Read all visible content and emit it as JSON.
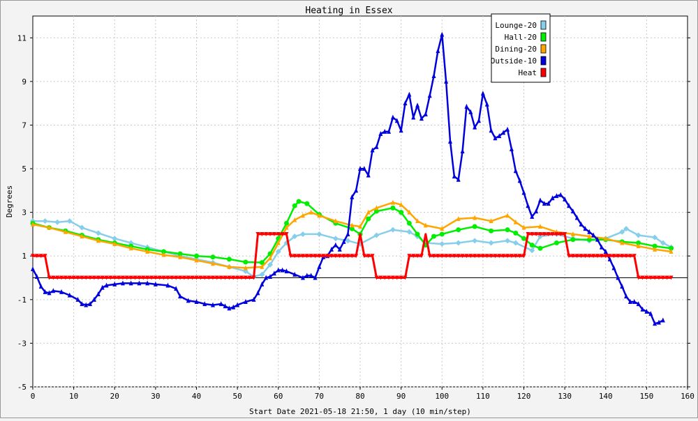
{
  "chart_data": {
    "type": "line",
    "title": "Heating in Essex",
    "xlabel": "Start Date 2021-05-18 21:50, 1 day (10 min/step)",
    "ylabel": "Degrees",
    "xlim": [
      0,
      160
    ],
    "ylim": [
      -5,
      12
    ],
    "x_ticks": [
      0,
      10,
      20,
      30,
      40,
      50,
      60,
      70,
      80,
      90,
      100,
      110,
      120,
      130,
      140,
      150,
      160
    ],
    "y_ticks": [
      -5,
      -3,
      -1,
      1,
      3,
      5,
      7,
      9,
      11
    ],
    "grid": true,
    "legend_position": "top-right",
    "series": [
      {
        "name": "Lounge-20",
        "color": "#87ceeb",
        "marker": "diamond",
        "points": [
          [
            0,
            2.6
          ],
          [
            3,
            2.6
          ],
          [
            6,
            2.55
          ],
          [
            9,
            2.6
          ],
          [
            12,
            2.3
          ],
          [
            16,
            2.05
          ],
          [
            20,
            1.8
          ],
          [
            24,
            1.6
          ],
          [
            28,
            1.4
          ],
          [
            32,
            1.2
          ],
          [
            36,
            1.0
          ],
          [
            40,
            0.85
          ],
          [
            44,
            0.7
          ],
          [
            48,
            0.5
          ],
          [
            52,
            0.3
          ],
          [
            54,
            0.05
          ],
          [
            56,
            0.15
          ],
          [
            58,
            0.6
          ],
          [
            60,
            1.2
          ],
          [
            62,
            1.6
          ],
          [
            64,
            1.9
          ],
          [
            66,
            2.0
          ],
          [
            70,
            2.0
          ],
          [
            74,
            1.8
          ],
          [
            77,
            1.7
          ],
          [
            80,
            1.55
          ],
          [
            84,
            1.95
          ],
          [
            88,
            2.2
          ],
          [
            92,
            2.1
          ],
          [
            94,
            1.9
          ],
          [
            96,
            1.6
          ],
          [
            100,
            1.55
          ],
          [
            104,
            1.6
          ],
          [
            108,
            1.7
          ],
          [
            112,
            1.6
          ],
          [
            116,
            1.7
          ],
          [
            118,
            1.6
          ],
          [
            122,
            1.25
          ],
          [
            124,
            1.9
          ],
          [
            128,
            2.0
          ],
          [
            132,
            1.8
          ],
          [
            136,
            1.7
          ],
          [
            140,
            1.8
          ],
          [
            144,
            2.1
          ],
          [
            145,
            2.25
          ],
          [
            148,
            1.95
          ],
          [
            152,
            1.85
          ],
          [
            154,
            1.6
          ],
          [
            156,
            1.4
          ]
        ]
      },
      {
        "name": "Hall-20",
        "color": "#00ee00",
        "marker": "circle",
        "points": [
          [
            0,
            2.5
          ],
          [
            4,
            2.3
          ],
          [
            8,
            2.15
          ],
          [
            12,
            1.95
          ],
          [
            16,
            1.75
          ],
          [
            20,
            1.6
          ],
          [
            24,
            1.45
          ],
          [
            28,
            1.3
          ],
          [
            32,
            1.2
          ],
          [
            36,
            1.1
          ],
          [
            40,
            1.0
          ],
          [
            44,
            0.95
          ],
          [
            48,
            0.85
          ],
          [
            52,
            0.72
          ],
          [
            56,
            0.7
          ],
          [
            58,
            1.1
          ],
          [
            60,
            1.8
          ],
          [
            62,
            2.5
          ],
          [
            64,
            3.3
          ],
          [
            65,
            3.5
          ],
          [
            67,
            3.4
          ],
          [
            70,
            2.9
          ],
          [
            74,
            2.5
          ],
          [
            78,
            2.25
          ],
          [
            80,
            2.0
          ],
          [
            82,
            2.7
          ],
          [
            84,
            3.05
          ],
          [
            88,
            3.2
          ],
          [
            90,
            3.0
          ],
          [
            92,
            2.5
          ],
          [
            94,
            2.0
          ],
          [
            96,
            1.5
          ],
          [
            98,
            1.9
          ],
          [
            100,
            2.0
          ],
          [
            104,
            2.2
          ],
          [
            108,
            2.35
          ],
          [
            112,
            2.15
          ],
          [
            116,
            2.2
          ],
          [
            118,
            2.05
          ],
          [
            120,
            1.8
          ],
          [
            122,
            1.5
          ],
          [
            124,
            1.35
          ],
          [
            128,
            1.6
          ],
          [
            132,
            1.75
          ],
          [
            136,
            1.75
          ],
          [
            140,
            1.75
          ],
          [
            144,
            1.65
          ],
          [
            148,
            1.6
          ],
          [
            152,
            1.45
          ],
          [
            156,
            1.35
          ]
        ]
      },
      {
        "name": "Dining-20",
        "color": "#ffa500",
        "marker": "triangle",
        "points": [
          [
            0,
            2.45
          ],
          [
            4,
            2.3
          ],
          [
            8,
            2.1
          ],
          [
            12,
            1.9
          ],
          [
            16,
            1.7
          ],
          [
            20,
            1.55
          ],
          [
            24,
            1.35
          ],
          [
            28,
            1.2
          ],
          [
            32,
            1.05
          ],
          [
            36,
            0.95
          ],
          [
            40,
            0.8
          ],
          [
            44,
            0.65
          ],
          [
            48,
            0.5
          ],
          [
            52,
            0.45
          ],
          [
            56,
            0.5
          ],
          [
            58,
            0.9
          ],
          [
            60,
            1.6
          ],
          [
            62,
            2.3
          ],
          [
            64,
            2.65
          ],
          [
            66,
            2.85
          ],
          [
            68,
            3.0
          ],
          [
            70,
            2.85
          ],
          [
            74,
            2.6
          ],
          [
            78,
            2.4
          ],
          [
            80,
            2.35
          ],
          [
            82,
            3.0
          ],
          [
            84,
            3.2
          ],
          [
            88,
            3.45
          ],
          [
            90,
            3.35
          ],
          [
            92,
            3.0
          ],
          [
            94,
            2.6
          ],
          [
            96,
            2.4
          ],
          [
            100,
            2.25
          ],
          [
            104,
            2.7
          ],
          [
            108,
            2.75
          ],
          [
            112,
            2.6
          ],
          [
            116,
            2.85
          ],
          [
            118,
            2.55
          ],
          [
            120,
            2.3
          ],
          [
            124,
            2.35
          ],
          [
            128,
            2.1
          ],
          [
            132,
            2.0
          ],
          [
            136,
            1.9
          ],
          [
            140,
            1.8
          ],
          [
            144,
            1.6
          ],
          [
            148,
            1.45
          ],
          [
            152,
            1.3
          ],
          [
            156,
            1.2
          ]
        ]
      },
      {
        "name": "Outside-10",
        "color": "#0000dd",
        "marker": "triangle",
        "points": [
          [
            0,
            0.4
          ],
          [
            1,
            0.05
          ],
          [
            2,
            -0.4
          ],
          [
            3,
            -0.65
          ],
          [
            4,
            -0.7
          ],
          [
            5,
            -0.6
          ],
          [
            7,
            -0.65
          ],
          [
            9,
            -0.8
          ],
          [
            11,
            -1.0
          ],
          [
            12,
            -1.2
          ],
          [
            13,
            -1.25
          ],
          [
            14,
            -1.2
          ],
          [
            15,
            -1.0
          ],
          [
            16,
            -0.75
          ],
          [
            17,
            -0.45
          ],
          [
            18,
            -0.35
          ],
          [
            20,
            -0.3
          ],
          [
            22,
            -0.25
          ],
          [
            24,
            -0.25
          ],
          [
            26,
            -0.25
          ],
          [
            28,
            -0.25
          ],
          [
            30,
            -0.3
          ],
          [
            33,
            -0.35
          ],
          [
            35,
            -0.5
          ],
          [
            36,
            -0.85
          ],
          [
            38,
            -1.05
          ],
          [
            40,
            -1.1
          ],
          [
            42,
            -1.2
          ],
          [
            44,
            -1.25
          ],
          [
            46,
            -1.2
          ],
          [
            47,
            -1.3
          ],
          [
            48,
            -1.4
          ],
          [
            49,
            -1.35
          ],
          [
            50,
            -1.25
          ],
          [
            52,
            -1.1
          ],
          [
            54,
            -1.0
          ],
          [
            55,
            -0.7
          ],
          [
            56,
            -0.3
          ],
          [
            57,
            0.0
          ],
          [
            58,
            0.05
          ],
          [
            59,
            0.2
          ],
          [
            60,
            0.35
          ],
          [
            61,
            0.35
          ],
          [
            62,
            0.3
          ],
          [
            64,
            0.15
          ],
          [
            66,
            0.0
          ],
          [
            67,
            0.1
          ],
          [
            68,
            0.1
          ],
          [
            69,
            0.0
          ],
          [
            70,
            0.5
          ],
          [
            71,
            0.95
          ],
          [
            72,
            1.0
          ],
          [
            73,
            1.3
          ],
          [
            74,
            1.5
          ],
          [
            75,
            1.3
          ],
          [
            76,
            1.65
          ],
          [
            77,
            2.0
          ],
          [
            78,
            3.7
          ],
          [
            79,
            4.0
          ],
          [
            80,
            5.0
          ],
          [
            81,
            5.0
          ],
          [
            82,
            4.7
          ],
          [
            83,
            5.85
          ],
          [
            84,
            6.0
          ],
          [
            85,
            6.6
          ],
          [
            86,
            6.7
          ],
          [
            87,
            6.7
          ],
          [
            88,
            7.35
          ],
          [
            89,
            7.2
          ],
          [
            90,
            6.75
          ],
          [
            91,
            8.0
          ],
          [
            92,
            8.4
          ],
          [
            93,
            7.35
          ],
          [
            94,
            7.9
          ],
          [
            95,
            7.3
          ],
          [
            96,
            7.5
          ],
          [
            97,
            8.35
          ],
          [
            98,
            9.25
          ],
          [
            99,
            10.4
          ],
          [
            100,
            11.15
          ],
          [
            101,
            9.0
          ],
          [
            102,
            6.25
          ],
          [
            103,
            4.65
          ],
          [
            104,
            4.5
          ],
          [
            105,
            5.8
          ],
          [
            106,
            7.85
          ],
          [
            107,
            7.6
          ],
          [
            108,
            6.9
          ],
          [
            109,
            7.2
          ],
          [
            110,
            8.45
          ],
          [
            111,
            7.95
          ],
          [
            112,
            6.75
          ],
          [
            113,
            6.4
          ],
          [
            114,
            6.5
          ],
          [
            115,
            6.65
          ],
          [
            116,
            6.8
          ],
          [
            117,
            5.9
          ],
          [
            118,
            4.9
          ],
          [
            119,
            4.45
          ],
          [
            120,
            3.9
          ],
          [
            121,
            3.3
          ],
          [
            122,
            2.8
          ],
          [
            123,
            3.05
          ],
          [
            124,
            3.55
          ],
          [
            125,
            3.4
          ],
          [
            126,
            3.4
          ],
          [
            127,
            3.65
          ],
          [
            128,
            3.75
          ],
          [
            129,
            3.8
          ],
          [
            130,
            3.6
          ],
          [
            131,
            3.3
          ],
          [
            132,
            3.05
          ],
          [
            133,
            2.75
          ],
          [
            134,
            2.45
          ],
          [
            135,
            2.25
          ],
          [
            136,
            2.1
          ],
          [
            137,
            1.95
          ],
          [
            138,
            1.75
          ],
          [
            139,
            1.4
          ],
          [
            140,
            1.2
          ],
          [
            141,
            0.85
          ],
          [
            142,
            0.45
          ],
          [
            143,
            0.0
          ],
          [
            144,
            -0.4
          ],
          [
            145,
            -0.85
          ],
          [
            146,
            -1.1
          ],
          [
            147,
            -1.1
          ],
          [
            148,
            -1.2
          ],
          [
            149,
            -1.45
          ],
          [
            150,
            -1.55
          ],
          [
            151,
            -1.65
          ],
          [
            152,
            -2.1
          ],
          [
            153,
            -2.05
          ],
          [
            154,
            -1.95
          ]
        ]
      },
      {
        "name": "Heat",
        "color": "#ff0000",
        "marker": "triangle-down",
        "points": [
          [
            0,
            1
          ],
          [
            3,
            1
          ],
          [
            4,
            0
          ],
          [
            54,
            0
          ],
          [
            55,
            2
          ],
          [
            62,
            2
          ],
          [
            63,
            1
          ],
          [
            79,
            1
          ],
          [
            80,
            2
          ],
          [
            81,
            1
          ],
          [
            83,
            1
          ],
          [
            84,
            0
          ],
          [
            91,
            0
          ],
          [
            92,
            1
          ],
          [
            95,
            1
          ],
          [
            96,
            2
          ],
          [
            97,
            1
          ],
          [
            120,
            1
          ],
          [
            121,
            2
          ],
          [
            130,
            2
          ],
          [
            131,
            1
          ],
          [
            147,
            1
          ],
          [
            148,
            0
          ],
          [
            156,
            0
          ]
        ]
      }
    ]
  }
}
